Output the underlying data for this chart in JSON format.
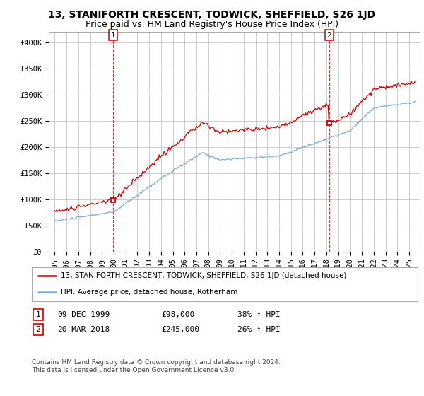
{
  "title": "13, STANIFORTH CRESCENT, TODWICK, SHEFFIELD, S26 1JD",
  "subtitle": "Price paid vs. HM Land Registry's House Price Index (HPI)",
  "ylim": [
    0,
    420000
  ],
  "yticks": [
    0,
    50000,
    100000,
    150000,
    200000,
    250000,
    300000,
    350000,
    400000
  ],
  "ytick_labels": [
    "£0",
    "£50K",
    "£100K",
    "£150K",
    "£200K",
    "£250K",
    "£300K",
    "£350K",
    "£400K"
  ],
  "background_color": "#ffffff",
  "grid_color": "#cccccc",
  "sale1": {
    "date_num": 1999.93,
    "price": 98000,
    "label": "1",
    "date_str": "09-DEC-1999",
    "price_str": "£98,000",
    "hpi_str": "38% ↑ HPI"
  },
  "sale2": {
    "date_num": 2018.22,
    "price": 245000,
    "label": "2",
    "date_str": "20-MAR-2018",
    "price_str": "£245,000",
    "hpi_str": "26% ↑ HPI"
  },
  "legend_entry1": "13, STANIFORTH CRESCENT, TODWICK, SHEFFIELD, S26 1JD (detached house)",
  "legend_entry2": "HPI: Average price, detached house, Rotherham",
  "footer": "Contains HM Land Registry data © Crown copyright and database right 2024.\nThis data is licensed under the Open Government Licence v3.0.",
  "line_color_red": "#cc0000",
  "line_color_blue": "#7eadd4",
  "title_fontsize": 10,
  "subtitle_fontsize": 9,
  "tick_fontsize": 7.5,
  "xlim_left": 1994.5,
  "xlim_right": 2025.9
}
